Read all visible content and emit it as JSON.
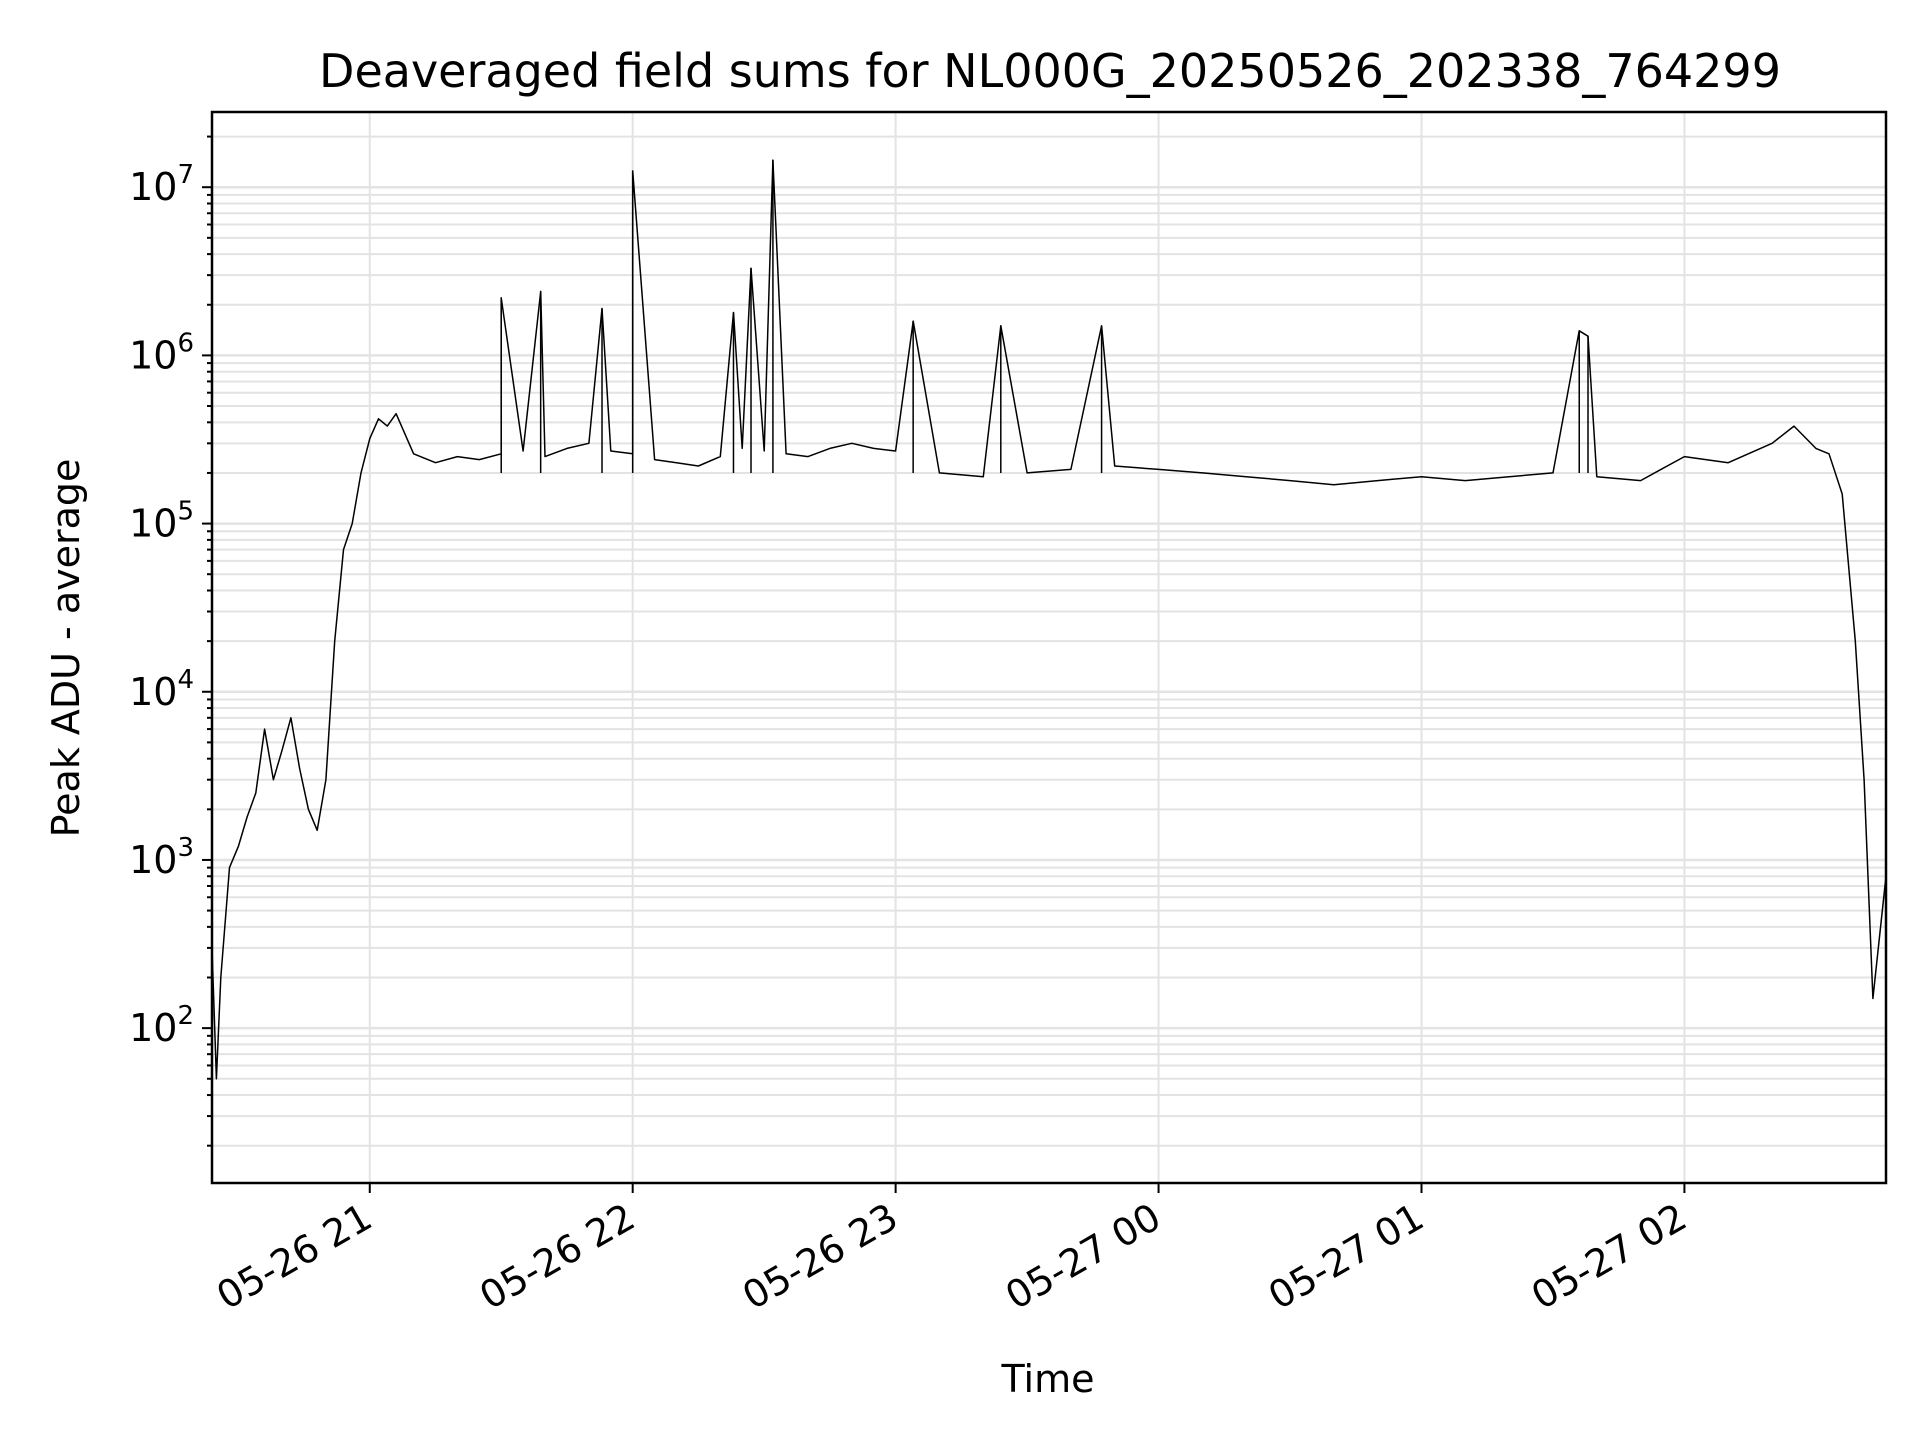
{
  "chart_data": {
    "type": "line",
    "title": "Deaveraged field sums for NL000G_20250526_202338_764299",
    "xlabel": "Time",
    "ylabel": "Peak ADU - average",
    "yscale": "log",
    "grid": true,
    "x_ticks": [
      "05-26 21",
      "05-26 22",
      "05-26 23",
      "05-27 00",
      "05-27 01",
      "05-27 02"
    ],
    "y_ticks": [
      {
        "base": "10",
        "exp": "2",
        "value": 100
      },
      {
        "base": "10",
        "exp": "3",
        "value": 1000
      },
      {
        "base": "10",
        "exp": "4",
        "value": 10000
      },
      {
        "base": "10",
        "exp": "5",
        "value": 100000
      },
      {
        "base": "10",
        "exp": "6",
        "value": 1000000
      },
      {
        "base": "10",
        "exp": "7",
        "value": 10000000
      }
    ],
    "xlim": [
      "2025-05-26 20:24",
      "2025-05-27 02:46"
    ],
    "ylim": [
      12,
      28000000
    ],
    "line_color": "#000000",
    "series": [
      {
        "x": [
          "2025-05-26 20:24",
          "2025-05-26 20:25",
          "2025-05-26 20:26",
          "2025-05-26 20:28",
          "2025-05-26 20:30",
          "2025-05-26 20:32",
          "2025-05-26 20:34",
          "2025-05-26 20:36",
          "2025-05-26 20:38",
          "2025-05-26 20:40",
          "2025-05-26 20:42",
          "2025-05-26 20:44",
          "2025-05-26 20:46",
          "2025-05-26 20:48",
          "2025-05-26 20:50",
          "2025-05-26 20:52",
          "2025-05-26 20:54",
          "2025-05-26 20:56",
          "2025-05-26 20:58",
          "2025-05-26 21:00",
          "2025-05-26 21:02",
          "2025-05-26 21:04",
          "2025-05-26 21:06",
          "2025-05-26 21:10",
          "2025-05-26 21:15",
          "2025-05-26 21:20",
          "2025-05-26 21:25",
          "2025-05-26 21:30",
          "2025-05-26 21:35",
          "2025-05-26 21:40",
          "2025-05-26 21:45",
          "2025-05-26 21:50",
          "2025-05-26 21:55",
          "2025-05-26 22:00",
          "2025-05-26 22:05",
          "2025-05-26 22:10",
          "2025-05-26 22:15",
          "2025-05-26 22:20",
          "2025-05-26 22:25",
          "2025-05-26 22:30",
          "2025-05-26 22:35",
          "2025-05-26 22:40",
          "2025-05-26 22:45",
          "2025-05-26 22:50",
          "2025-05-26 22:55",
          "2025-05-26 23:00",
          "2025-05-26 23:10",
          "2025-05-26 23:20",
          "2025-05-26 23:30",
          "2025-05-26 23:40",
          "2025-05-26 23:50",
          "2025-05-27 00:00",
          "2025-05-27 00:10",
          "2025-05-27 00:20",
          "2025-05-27 00:30",
          "2025-05-27 00:40",
          "2025-05-27 00:50",
          "2025-05-27 01:00",
          "2025-05-27 01:10",
          "2025-05-27 01:20",
          "2025-05-27 01:30",
          "2025-05-27 01:40",
          "2025-05-27 01:50",
          "2025-05-27 02:00",
          "2025-05-27 02:10",
          "2025-05-27 02:20",
          "2025-05-27 02:25",
          "2025-05-27 02:30",
          "2025-05-27 02:33",
          "2025-05-27 02:36",
          "2025-05-27 02:39",
          "2025-05-27 02:41",
          "2025-05-27 02:43",
          "2025-05-27 02:46"
        ],
        "values": [
          300,
          50,
          200,
          900,
          1200,
          1800,
          2500,
          6000,
          3000,
          4500,
          7000,
          3500,
          2000,
          1500,
          3000,
          20000,
          70000,
          100000,
          200000,
          320000,
          420000,
          380000,
          450000,
          260000,
          230000,
          250000,
          240000,
          260000,
          270000,
          250000,
          280000,
          300000,
          270000,
          260000,
          240000,
          230000,
          220000,
          250000,
          280000,
          270000,
          260000,
          250000,
          280000,
          300000,
          280000,
          270000,
          200000,
          190000,
          200000,
          210000,
          220000,
          210000,
          200000,
          190000,
          180000,
          170000,
          180000,
          190000,
          180000,
          190000,
          200000,
          190000,
          180000,
          250000,
          230000,
          300000,
          380000,
          280000,
          260000,
          150000,
          20000,
          3000,
          150,
          800
        ]
      }
    ],
    "spikes": [
      {
        "x": "2025-05-26 21:30",
        "value": 2200000
      },
      {
        "x": "2025-05-26 21:39",
        "value": 2400000
      },
      {
        "x": "2025-05-26 21:53",
        "value": 1900000
      },
      {
        "x": "2025-05-26 22:00",
        "value": 12500000
      },
      {
        "x": "2025-05-26 22:23",
        "value": 1800000
      },
      {
        "x": "2025-05-26 22:27",
        "value": 3300000
      },
      {
        "x": "2025-05-26 22:32",
        "value": 14500000
      },
      {
        "x": "2025-05-26 23:04",
        "value": 1600000
      },
      {
        "x": "2025-05-26 23:24",
        "value": 1500000
      },
      {
        "x": "2025-05-26 23:47",
        "value": 1500000
      },
      {
        "x": "2025-05-27 01:36",
        "value": 1400000
      },
      {
        "x": "2025-05-27 01:38",
        "value": 1300000
      }
    ]
  }
}
